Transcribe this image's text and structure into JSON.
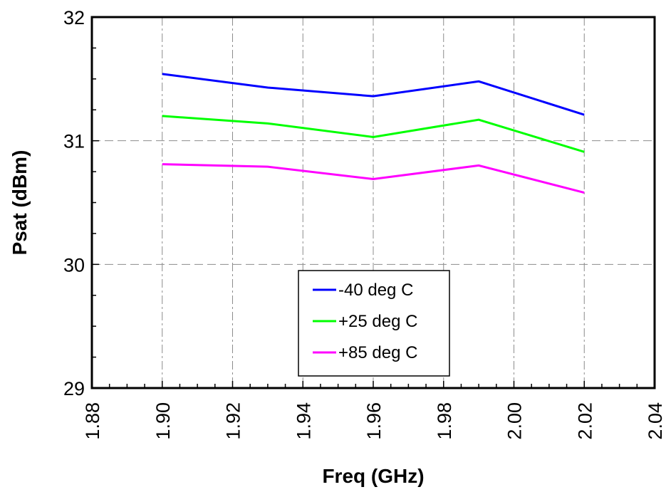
{
  "chart_data": {
    "type": "line",
    "title": "",
    "xlabel": "Freq (GHz)",
    "ylabel": "Psat (dBm)",
    "xlim": [
      1.88,
      2.04
    ],
    "ylim": [
      29,
      32
    ],
    "x_ticks": [
      "1.88",
      "1.90",
      "1.92",
      "1.94",
      "1.96",
      "1.98",
      "2.00",
      "2.02",
      "2.04"
    ],
    "y_ticks": [
      "29",
      "30",
      "31",
      "32"
    ],
    "x": [
      1.9,
      1.93,
      1.96,
      1.99,
      2.02
    ],
    "grid": true,
    "legend_position": "bottom-center",
    "series": [
      {
        "name": "-40 deg C",
        "color": "#0000ff",
        "values": [
          31.54,
          31.43,
          31.36,
          31.48,
          31.21
        ]
      },
      {
        "name": "+25 deg C",
        "color": "#00ff00",
        "values": [
          31.2,
          31.14,
          31.03,
          31.17,
          30.91
        ]
      },
      {
        "name": "+85 deg C",
        "color": "#ff00ff",
        "values": [
          30.81,
          30.79,
          30.69,
          30.8,
          30.58
        ]
      }
    ]
  }
}
